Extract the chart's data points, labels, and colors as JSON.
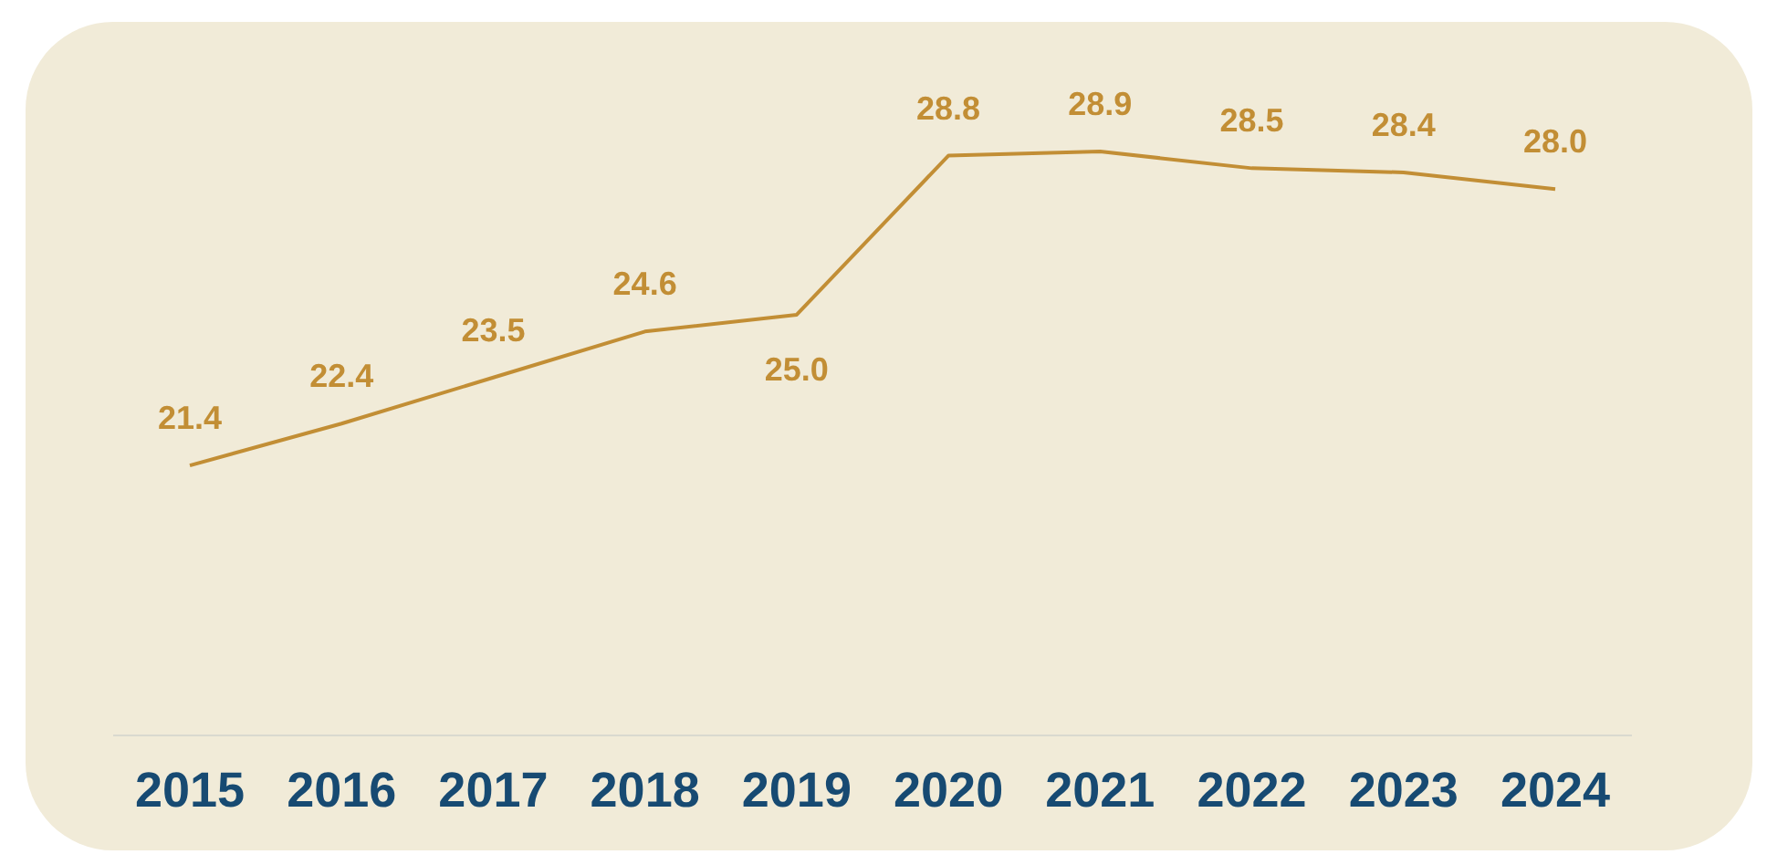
{
  "chart_data": {
    "type": "line",
    "categories": [
      "2015",
      "2016",
      "2017",
      "2018",
      "2019",
      "2020",
      "2021",
      "2022",
      "2023",
      "2024"
    ],
    "values": [
      21.4,
      22.4,
      23.5,
      24.6,
      25.0,
      28.8,
      28.9,
      28.5,
      28.4,
      28.0
    ],
    "value_labels": [
      "21.4",
      "22.4",
      "23.5",
      "24.6",
      "25.0",
      "28.8",
      "28.9",
      "28.5",
      "28.4",
      "28.0"
    ],
    "color": "#c28e35",
    "marker": "none"
  }
}
